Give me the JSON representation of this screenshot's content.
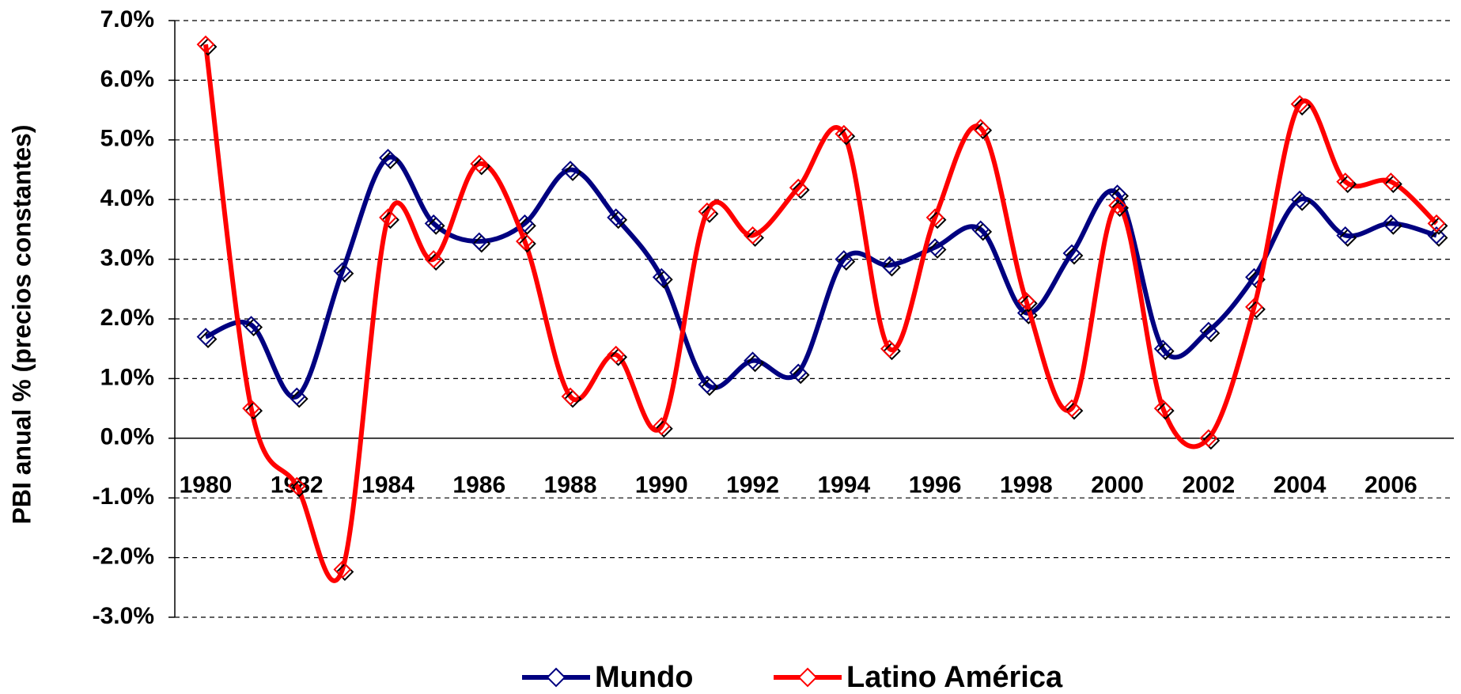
{
  "chart_data": {
    "type": "line",
    "y_label": "PBI anual % (precios constantes)",
    "categories": [
      "1980",
      null,
      "1982",
      null,
      "1984",
      null,
      "1986",
      null,
      "1988",
      null,
      "1990",
      null,
      "1992",
      null,
      "1994",
      null,
      "1996",
      null,
      "1998",
      null,
      "2000",
      null,
      "2002",
      null,
      "2004",
      null,
      "2006",
      null
    ],
    "series": [
      {
        "name": "Mundo",
        "color": "#000080",
        "values": [
          1.7,
          1.9,
          0.7,
          2.8,
          4.7,
          3.6,
          3.3,
          3.6,
          4.5,
          3.7,
          2.7,
          0.9,
          1.3,
          1.1,
          3.0,
          2.9,
          3.2,
          3.5,
          2.1,
          3.1,
          4.1,
          1.5,
          1.8,
          2.7,
          4.0,
          3.4,
          3.6,
          3.4
        ]
      },
      {
        "name": "Latino América",
        "color": "#ff0000",
        "values": [
          6.6,
          0.5,
          -0.8,
          -2.2,
          3.7,
          3.0,
          4.6,
          3.3,
          0.7,
          1.4,
          0.2,
          3.8,
          3.4,
          4.2,
          5.1,
          1.5,
          3.7,
          5.2,
          2.3,
          0.5,
          3.9,
          0.5,
          0.0,
          2.2,
          5.6,
          4.3,
          4.3,
          3.6
        ]
      }
    ],
    "ylim": [
      -3,
      7
    ],
    "yticks": [
      {
        "value": -3,
        "label": "-3.0%"
      },
      {
        "value": -2,
        "label": "-2.0%"
      },
      {
        "value": -1,
        "label": "-1.0%"
      },
      {
        "value": 0,
        "label": "0.0%"
      },
      {
        "value": 1,
        "label": "1.0%"
      },
      {
        "value": 2,
        "label": "2.0%"
      },
      {
        "value": 3,
        "label": "3.0%"
      },
      {
        "value": 4,
        "label": "4.0%"
      },
      {
        "value": 5,
        "label": "5.0%"
      },
      {
        "value": 6,
        "label": "6.0%"
      },
      {
        "value": 7,
        "label": "7.0%"
      }
    ],
    "grid": true,
    "legend": "bottom"
  }
}
